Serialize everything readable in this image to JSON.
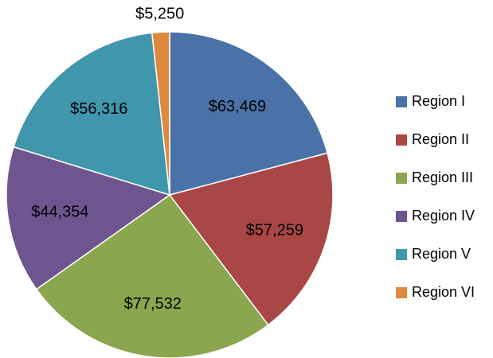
{
  "chart_data": {
    "type": "pie",
    "categories": [
      "Region I",
      "Region II",
      "Region III",
      "Region IV",
      "Region V",
      "Region VI"
    ],
    "values": [
      63469,
      57259,
      77532,
      44354,
      56316,
      5250
    ],
    "value_labels": [
      "$63,469",
      "$57,259",
      "$77,532",
      "$44,354",
      "$56,316",
      "$5,250"
    ],
    "colors": [
      "#4a72a8",
      "#a94646",
      "#8aa64e",
      "#6f5590",
      "#4096ad",
      "#de8a3c"
    ],
    "legend": "right"
  }
}
